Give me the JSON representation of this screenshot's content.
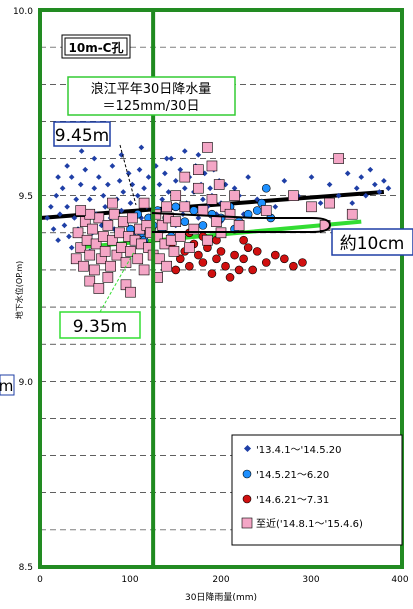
{
  "chart_data": {
    "type": "scatter",
    "title": "10m-C孔",
    "xlabel": "30日降雨量(mm)",
    "ylabel": "地下水位(OP.m)",
    "xlim": [
      0,
      400
    ],
    "ylim": [
      8.5,
      10.0
    ],
    "x_ticks": [
      "0",
      "100",
      "200",
      "300",
      "400"
    ],
    "y_ticks": [
      "8.5",
      "9.0",
      "9.5",
      "10.0"
    ],
    "grid": "dashed-horizontal",
    "legend_position": "bottom-right",
    "annotations": {
      "mean_rain_line1": "浪江平年30日降水量",
      "mean_rain_line2": "＝125mm/30日",
      "level_old": "9.45m",
      "level_new": "9.35m",
      "diff": "約10cm",
      "left_cut": "m"
    },
    "vertical_line_x": 125,
    "colors": {
      "s1": "#1f3fa6",
      "s2": "#1e90ff",
      "s3": "#d01010",
      "s4": "#f4a6c6",
      "trend_old": "#000000",
      "trend_new": "#33dd33",
      "vline": "#1f8a1f",
      "frame": "#228b22"
    },
    "trend_lines": [
      {
        "x": [
          0,
          380
        ],
        "y": [
          9.44,
          9.51
        ],
        "color": "#000000"
      },
      {
        "x": [
          40,
          355
        ],
        "y": [
          9.36,
          9.43
        ],
        "color": "#33dd33"
      }
    ],
    "series": [
      {
        "name": "'13.4.1～'14.5.20",
        "marker": "diamond",
        "points": [
          [
            8,
            9.44
          ],
          [
            12,
            9.47
          ],
          [
            15,
            9.41
          ],
          [
            18,
            9.5
          ],
          [
            20,
            9.38
          ],
          [
            22,
            9.45
          ],
          [
            25,
            9.52
          ],
          [
            27,
            9.42
          ],
          [
            30,
            9.47
          ],
          [
            32,
            9.39
          ],
          [
            35,
            9.55
          ],
          [
            38,
            9.44
          ],
          [
            40,
            9.49
          ],
          [
            42,
            9.41
          ],
          [
            45,
            9.53
          ],
          [
            48,
            9.46
          ],
          [
            50,
            9.57
          ],
          [
            52,
            9.43
          ],
          [
            55,
            9.49
          ],
          [
            58,
            9.4
          ],
          [
            60,
            9.52
          ],
          [
            62,
            9.45
          ],
          [
            65,
            9.55
          ],
          [
            68,
            9.42
          ],
          [
            70,
            9.5
          ],
          [
            72,
            9.47
          ],
          [
            75,
            9.53
          ],
          [
            78,
            9.44
          ],
          [
            80,
            9.58
          ],
          [
            82,
            9.41
          ],
          [
            85,
            9.49
          ],
          [
            88,
            9.54
          ],
          [
            90,
            9.46
          ],
          [
            92,
            9.51
          ],
          [
            95,
            9.43
          ],
          [
            98,
            9.56
          ],
          [
            100,
            9.48
          ],
          [
            102,
            9.53
          ],
          [
            105,
            9.45
          ],
          [
            108,
            9.5
          ],
          [
            110,
            9.57
          ],
          [
            112,
            9.44
          ],
          [
            115,
            9.52
          ],
          [
            118,
            9.47
          ],
          [
            120,
            9.55
          ],
          [
            122,
            9.42
          ],
          [
            125,
            9.5
          ],
          [
            128,
            9.58
          ],
          [
            130,
            9.46
          ],
          [
            132,
            9.53
          ],
          [
            135,
            9.49
          ],
          [
            138,
            9.56
          ],
          [
            140,
            9.44
          ],
          [
            142,
            9.51
          ],
          [
            145,
            9.6
          ],
          [
            148,
            9.47
          ],
          [
            150,
            9.54
          ],
          [
            152,
            9.5
          ],
          [
            155,
            9.57
          ],
          [
            158,
            9.45
          ],
          [
            160,
            9.52
          ],
          [
            162,
            9.48
          ],
          [
            165,
            9.55
          ],
          [
            168,
            9.46
          ],
          [
            170,
            9.51
          ],
          [
            172,
            9.58
          ],
          [
            175,
            9.44
          ],
          [
            178,
            9.53
          ],
          [
            180,
            9.49
          ],
          [
            182,
            9.56
          ],
          [
            185,
            9.47
          ],
          [
            188,
            9.52
          ],
          [
            190,
            9.5
          ],
          [
            192,
            9.57
          ],
          [
            195,
            9.45
          ],
          [
            198,
            9.54
          ],
          [
            200,
            9.48
          ],
          [
            205,
            9.53
          ],
          [
            210,
            9.47
          ],
          [
            215,
            9.52
          ],
          [
            220,
            9.5
          ],
          [
            225,
            9.45
          ],
          [
            230,
            9.55
          ],
          [
            240,
            9.49
          ],
          [
            250,
            9.52
          ],
          [
            260,
            9.47
          ],
          [
            270,
            9.54
          ],
          [
            285,
            9.5
          ],
          [
            300,
            9.55
          ],
          [
            310,
            9.48
          ],
          [
            320,
            9.53
          ],
          [
            330,
            9.5
          ],
          [
            340,
            9.56
          ],
          [
            345,
            9.48
          ],
          [
            350,
            9.52
          ],
          [
            355,
            9.55
          ],
          [
            360,
            9.5
          ],
          [
            365,
            9.57
          ],
          [
            370,
            9.53
          ],
          [
            375,
            9.51
          ],
          [
            380,
            9.54
          ],
          [
            385,
            9.52
          ],
          [
            46,
            9.62
          ],
          [
            112,
            9.63
          ],
          [
            160,
            9.62
          ],
          [
            30,
            9.58
          ],
          [
            60,
            9.6
          ],
          [
            90,
            9.61
          ],
          [
            20,
            9.55
          ],
          [
            140,
            9.6
          ],
          [
            175,
            9.61
          ],
          [
            200,
            9.43
          ],
          [
            65,
            9.38
          ],
          [
            85,
            9.37
          ],
          [
            105,
            9.4
          ],
          [
            35,
            9.36
          ],
          [
            125,
            9.41
          ],
          [
            150,
            9.42
          ],
          [
            95,
            9.39
          ],
          [
            55,
            9.35
          ]
        ]
      },
      {
        "name": "'14.5.21～6.20",
        "marker": "circle",
        "points": [
          [
            92,
            9.43
          ],
          [
            100,
            9.41
          ],
          [
            108,
            9.45
          ],
          [
            112,
            9.4
          ],
          [
            120,
            9.44
          ],
          [
            125,
            9.42
          ],
          [
            130,
            9.46
          ],
          [
            135,
            9.41
          ],
          [
            140,
            9.44
          ],
          [
            150,
            9.47
          ],
          [
            160,
            9.43
          ],
          [
            170,
            9.46
          ],
          [
            180,
            9.42
          ],
          [
            190,
            9.45
          ],
          [
            200,
            9.44
          ],
          [
            210,
            9.47
          ],
          [
            215,
            9.41
          ],
          [
            220,
            9.43
          ],
          [
            230,
            9.45
          ],
          [
            240,
            9.46
          ],
          [
            250,
            9.52
          ],
          [
            245,
            9.48
          ],
          [
            255,
            9.44
          ],
          [
            115,
            9.38
          ],
          [
            145,
            9.39
          ]
        ]
      },
      {
        "name": "'14.6.21～7.31",
        "marker": "circle",
        "points": [
          [
            150,
            9.3
          ],
          [
            155,
            9.33
          ],
          [
            160,
            9.35
          ],
          [
            165,
            9.31
          ],
          [
            170,
            9.37
          ],
          [
            175,
            9.34
          ],
          [
            180,
            9.32
          ],
          [
            185,
            9.36
          ],
          [
            190,
            9.29
          ],
          [
            195,
            9.33
          ],
          [
            200,
            9.35
          ],
          [
            205,
            9.31
          ],
          [
            210,
            9.28
          ],
          [
            215,
            9.34
          ],
          [
            220,
            9.3
          ],
          [
            225,
            9.33
          ],
          [
            230,
            9.36
          ],
          [
            235,
            9.3
          ],
          [
            240,
            9.35
          ],
          [
            250,
            9.32
          ],
          [
            260,
            9.34
          ],
          [
            270,
            9.33
          ],
          [
            280,
            9.31
          ],
          [
            290,
            9.32
          ],
          [
            180,
            9.39
          ],
          [
            165,
            9.4
          ],
          [
            195,
            9.38
          ],
          [
            225,
            9.38
          ],
          [
            145,
            9.37
          ]
        ]
      },
      {
        "name": "至近('14.8.1～'15.4.6)",
        "marker": "square",
        "points": [
          [
            40,
            9.33
          ],
          [
            42,
            9.4
          ],
          [
            45,
            9.36
          ],
          [
            48,
            9.31
          ],
          [
            50,
            9.43
          ],
          [
            52,
            9.38
          ],
          [
            55,
            9.34
          ],
          [
            58,
            9.41
          ],
          [
            60,
            9.3
          ],
          [
            62,
            9.37
          ],
          [
            65,
            9.44
          ],
          [
            68,
            9.33
          ],
          [
            70,
            9.39
          ],
          [
            72,
            9.35
          ],
          [
            75,
            9.42
          ],
          [
            78,
            9.31
          ],
          [
            80,
            9.38
          ],
          [
            82,
            9.45
          ],
          [
            85,
            9.34
          ],
          [
            88,
            9.4
          ],
          [
            90,
            9.36
          ],
          [
            92,
            9.43
          ],
          [
            95,
            9.32
          ],
          [
            98,
            9.39
          ],
          [
            100,
            9.35
          ],
          [
            102,
            9.44
          ],
          [
            105,
            9.38
          ],
          [
            108,
            9.33
          ],
          [
            110,
            9.41
          ],
          [
            112,
            9.37
          ],
          [
            115,
            9.3
          ],
          [
            118,
            9.42
          ],
          [
            120,
            9.36
          ],
          [
            122,
            9.4
          ],
          [
            125,
            9.34
          ],
          [
            128,
            9.45
          ],
          [
            130,
            9.39
          ],
          [
            132,
            9.33
          ],
          [
            135,
            9.42
          ],
          [
            138,
            9.37
          ],
          [
            140,
            9.31
          ],
          [
            142,
            9.44
          ],
          [
            145,
            9.38
          ],
          [
            148,
            9.35
          ],
          [
            150,
            9.43
          ],
          [
            155,
            9.39
          ],
          [
            160,
            9.47
          ],
          [
            165,
            9.36
          ],
          [
            170,
            9.41
          ],
          [
            175,
            9.52
          ],
          [
            180,
            9.46
          ],
          [
            185,
            9.38
          ],
          [
            190,
            9.49
          ],
          [
            195,
            9.43
          ],
          [
            200,
            9.4
          ],
          [
            205,
            9.47
          ],
          [
            190,
            9.58
          ],
          [
            185,
            9.63
          ],
          [
            160,
            9.55
          ],
          [
            175,
            9.57
          ],
          [
            198,
            9.53
          ],
          [
            210,
            9.45
          ],
          [
            215,
            9.5
          ],
          [
            220,
            9.42
          ],
          [
            250,
            9.46
          ],
          [
            280,
            9.5
          ],
          [
            300,
            9.47
          ],
          [
            315,
            9.42
          ],
          [
            320,
            9.48
          ],
          [
            345,
            9.45
          ],
          [
            355,
            9.38
          ],
          [
            330,
            9.6
          ],
          [
            95,
            9.26
          ],
          [
            100,
            9.24
          ],
          [
            55,
            9.27
          ],
          [
            65,
            9.25
          ],
          [
            75,
            9.28
          ],
          [
            130,
            9.28
          ],
          [
            80,
            9.48
          ],
          [
            115,
            9.48
          ],
          [
            55,
            9.45
          ],
          [
            45,
            9.46
          ],
          [
            140,
            9.47
          ],
          [
            150,
            9.5
          ]
        ]
      }
    ]
  }
}
